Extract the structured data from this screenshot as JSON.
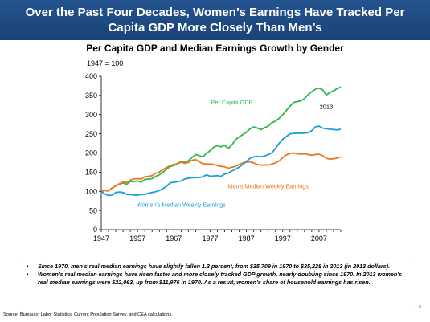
{
  "slide": {
    "title": "Over the Past Four Decades, Women’s Earnings Have Tracked Per Capita GDP More Closely Than Men’s",
    "page_number": "6"
  },
  "chart_data": {
    "type": "line",
    "title": "Per Capita GDP and Median Earnings Growth by Gender",
    "ylabel": "1947 = 100",
    "xlabel": "",
    "xlim": [
      1947,
      2013
    ],
    "ylim": [
      0,
      400
    ],
    "yticks": [
      0,
      50,
      100,
      150,
      200,
      250,
      300,
      350,
      400
    ],
    "xticks": [
      1947,
      1957,
      1967,
      1977,
      1987,
      1997,
      2007
    ],
    "grid": false,
    "legend": "none",
    "annotations": [
      {
        "text": "2013",
        "x": 2009,
        "y": 315
      }
    ],
    "series": [
      {
        "name": "Per Capita GDP",
        "color": "#2eb84b",
        "label_at": [
          1983,
          327
        ],
        "x": [
          1947,
          1948,
          1949,
          1950,
          1951,
          1952,
          1953,
          1954,
          1955,
          1956,
          1957,
          1958,
          1959,
          1960,
          1961,
          1962,
          1963,
          1964,
          1965,
          1966,
          1967,
          1968,
          1969,
          1970,
          1971,
          1972,
          1973,
          1974,
          1975,
          1976,
          1977,
          1978,
          1979,
          1980,
          1981,
          1982,
          1983,
          1984,
          1985,
          1986,
          1987,
          1988,
          1989,
          1990,
          1991,
          1992,
          1993,
          1994,
          1995,
          1996,
          1997,
          1998,
          1999,
          2000,
          2001,
          2002,
          2003,
          2004,
          2005,
          2006,
          2007,
          2008,
          2009,
          2010,
          2011,
          2012,
          2013
        ],
        "values": [
          100,
          103,
          101,
          108,
          115,
          118,
          122,
          118,
          126,
          125,
          127,
          124,
          131,
          132,
          133,
          139,
          143,
          150,
          158,
          165,
          167,
          173,
          177,
          176,
          180,
          188,
          196,
          193,
          190,
          199,
          206,
          215,
          219,
          216,
          220,
          212,
          221,
          235,
          242,
          248,
          254,
          263,
          268,
          265,
          261,
          266,
          270,
          279,
          283,
          290,
          300,
          311,
          322,
          332,
          334,
          336,
          342,
          352,
          360,
          366,
          369,
          365,
          351,
          358,
          362,
          368,
          372
        ]
      },
      {
        "name": "Men's Median Weekly Earnings",
        "color": "#e9781e",
        "label_at": [
          1993,
          108
        ],
        "x": [
          1947,
          1948,
          1949,
          1950,
          1951,
          1952,
          1953,
          1954,
          1955,
          1956,
          1957,
          1958,
          1959,
          1960,
          1961,
          1962,
          1963,
          1964,
          1965,
          1966,
          1967,
          1968,
          1969,
          1970,
          1971,
          1972,
          1973,
          1974,
          1975,
          1976,
          1977,
          1978,
          1979,
          1980,
          1981,
          1982,
          1983,
          1984,
          1985,
          1986,
          1987,
          1988,
          1989,
          1990,
          1991,
          1992,
          1993,
          1994,
          1995,
          1996,
          1997,
          1998,
          1999,
          2000,
          2001,
          2002,
          2003,
          2004,
          2005,
          2006,
          2007,
          2008,
          2009,
          2010,
          2011,
          2012,
          2013
        ],
        "values": [
          100,
          102,
          101,
          109,
          114,
          120,
          124,
          123,
          129,
          132,
          133,
          132,
          138,
          139,
          141,
          147,
          150,
          157,
          162,
          167,
          170,
          172,
          176,
          173,
          175,
          181,
          183,
          177,
          172,
          171,
          171,
          170,
          167,
          165,
          164,
          160,
          163,
          165,
          170,
          174,
          176,
          177,
          174,
          170,
          168,
          169,
          168,
          171,
          174,
          179,
          188,
          195,
          199,
          200,
          198,
          197,
          198,
          196,
          194,
          196,
          197,
          193,
          186,
          184,
          185,
          187,
          190
        ]
      },
      {
        "name": "Women's Median Weekly Earnings",
        "color": "#1a9fd9",
        "label_at": [
          1969,
          60
        ],
        "x": [
          1947,
          1948,
          1949,
          1950,
          1951,
          1952,
          1953,
          1954,
          1955,
          1956,
          1957,
          1958,
          1959,
          1960,
          1961,
          1962,
          1963,
          1964,
          1965,
          1966,
          1967,
          1968,
          1969,
          1970,
          1971,
          1972,
          1973,
          1974,
          1975,
          1976,
          1977,
          1978,
          1979,
          1980,
          1981,
          1982,
          1983,
          1984,
          1985,
          1986,
          1987,
          1988,
          1989,
          1990,
          1991,
          1992,
          1993,
          1994,
          1995,
          1996,
          1997,
          1998,
          1999,
          2000,
          2001,
          2002,
          2003,
          2004,
          2005,
          2006,
          2007,
          2008,
          2009,
          2010,
          2011,
          2012,
          2013
        ],
        "values": [
          100,
          93,
          89,
          90,
          97,
          98,
          97,
          92,
          92,
          90,
          90,
          92,
          92,
          95,
          97,
          99,
          102,
          107,
          113,
          122,
          124,
          125,
          127,
          132,
          134,
          135,
          136,
          136,
          138,
          143,
          139,
          140,
          141,
          139,
          145,
          147,
          153,
          158,
          163,
          170,
          178,
          186,
          190,
          191,
          190,
          192,
          196,
          200,
          212,
          225,
          236,
          243,
          250,
          251,
          252,
          251,
          252,
          253,
          258,
          268,
          270,
          265,
          263,
          262,
          261,
          260,
          262
        ]
      }
    ]
  },
  "notes": [
    "Since 1970, men’s real median earnings have slightly fallen 1.3 percent, from $35,709 in 1970 to $35,228 in 2013 (in 2013 dollars).",
    "Women’s real median earnings have risen faster and more closely tracked GDP growth, nearly doubling since 1970. In 2013 women’s real median earnings were $22,063, up from $11,976 in 1970. As a result, women’s share of household earnings has risen."
  ],
  "source": "Source: Bureau of Labor Statistics, Current Population Survey, and CEA calculations."
}
